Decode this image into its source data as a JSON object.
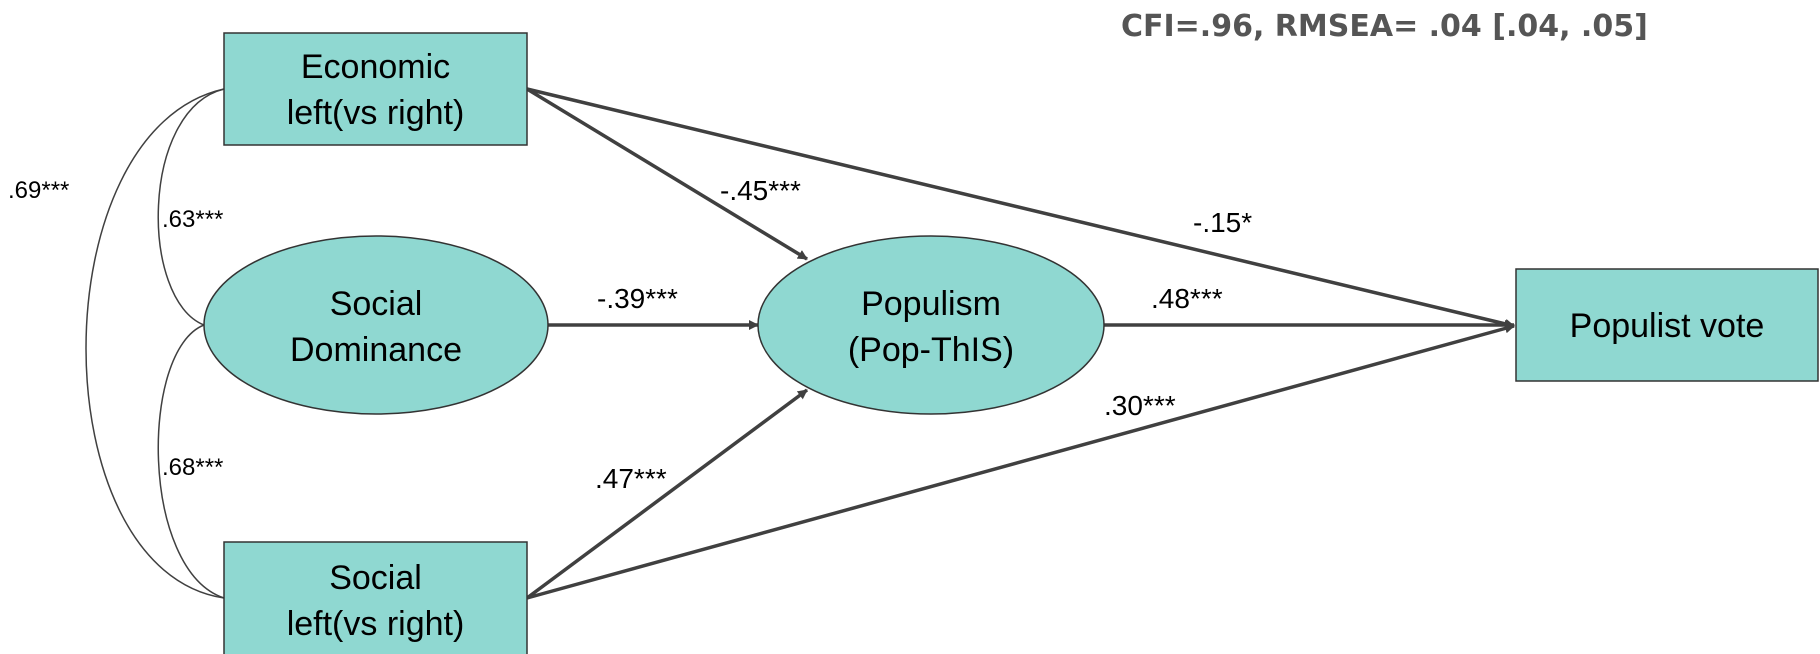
{
  "colors": {
    "node_fill": "#8fd8d1",
    "node_stroke": "#333333",
    "arrow": "#404040",
    "text": "#000000",
    "fit_text": "#555555"
  },
  "fit_stats": "CFI=.96, RMSEA= .04 [.04, .05]",
  "nodes": {
    "economic": {
      "line1": "Economic",
      "line2": "left(vs right)"
    },
    "social_dominance": {
      "line1": "Social",
      "line2": "Dominance"
    },
    "social": {
      "line1": "Social",
      "line2": "left(vs right)"
    },
    "populism": {
      "line1": "Populism",
      "line2": "(Pop-ThIS)"
    },
    "vote": {
      "line1": "Populist vote"
    }
  },
  "paths": {
    "econ_to_populism": "-.45***",
    "econ_to_vote": "-.15*",
    "sdo_to_populism": "-.39***",
    "populism_to_vote": ".48***",
    "social_to_populism": ".47***",
    "social_to_vote": ".30***"
  },
  "correlations": {
    "econ_social": ".69***",
    "econ_sdo": ".63***",
    "sdo_social": ".68***"
  }
}
